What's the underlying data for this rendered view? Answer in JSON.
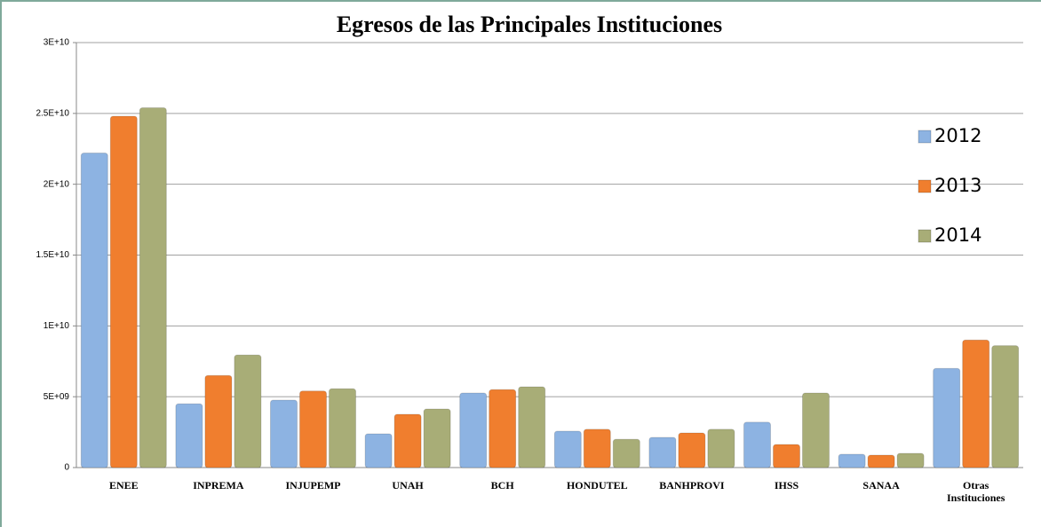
{
  "chart_data": {
    "type": "bar",
    "title": "Egresos de las Principales Instituciones",
    "categories": [
      "ENEE",
      "INPREMA",
      "INJUPEMP",
      "UNAH",
      "BCH",
      "HONDUTEL",
      "BANHPROVI",
      "IHSS",
      "SANAA",
      "Otras Instituciones"
    ],
    "series": [
      {
        "name": "2012",
        "color": "#8db3e2",
        "values": [
          22200000000,
          4500000000,
          4760000000,
          2380000000,
          5260000000,
          2570000000,
          2130000000,
          3200000000,
          940000000,
          7000000000
        ]
      },
      {
        "name": "2013",
        "color": "#f07e2e",
        "values": [
          24800000000,
          6500000000,
          5400000000,
          3760000000,
          5500000000,
          2700000000,
          2440000000,
          1630000000,
          880000000,
          9000000000
        ]
      },
      {
        "name": "2014",
        "color": "#a8ad77",
        "values": [
          25400000000,
          7950000000,
          5570000000,
          4130000000,
          5700000000,
          2000000000,
          2700000000,
          5260000000,
          1000000000,
          8600000000
        ]
      }
    ],
    "ylim": [
      0,
      30000000000
    ],
    "yticks": [
      0,
      {
        "value": 5000000000,
        "label": "5E+09"
      },
      {
        "value": 10000000000,
        "label": "1E+10"
      },
      {
        "value": 15000000000,
        "label": "1.5E+10"
      },
      {
        "value": 20000000000,
        "label": "2E+10"
      },
      {
        "value": 25000000000,
        "label": "2.5E+10"
      },
      {
        "value": 30000000000,
        "label": "3E+10"
      }
    ],
    "grid": true,
    "legend": "right"
  }
}
